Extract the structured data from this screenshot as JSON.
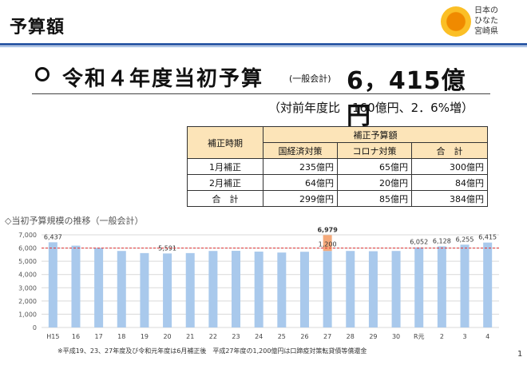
{
  "header": {
    "title": "予算額",
    "logo_lines": [
      "日本の",
      "ひなた",
      "宮崎県"
    ]
  },
  "headline": {
    "label": "令和４年度当初予算",
    "sub": "(一般会計)",
    "amount": "6，415億円",
    "comparison": "（対前年度比　160億円、2．6%増）"
  },
  "table": {
    "head_period": "補正時期",
    "head_group": "補正予算額",
    "head_cols": [
      "国経済対策",
      "コロナ対策",
      "合　計"
    ],
    "rows": [
      {
        "label": "1月補正",
        "cells": [
          "235億円",
          "65億円",
          "300億円"
        ]
      },
      {
        "label": "2月補正",
        "cells": [
          "64億円",
          "20億円",
          "84億円"
        ]
      },
      {
        "label": "合　計",
        "cells": [
          "299億円",
          "85億円",
          "384億円"
        ]
      }
    ]
  },
  "chart_title": "◇当初予算規模の推移（一般会計）",
  "chart_data": {
    "type": "bar",
    "categories": [
      "H15",
      "16",
      "17",
      "18",
      "19",
      "20",
      "21",
      "22",
      "23",
      "24",
      "25",
      "26",
      "27",
      "28",
      "29",
      "30",
      "R元",
      "2",
      "3",
      "4"
    ],
    "values": [
      6437,
      6180,
      6010,
      5780,
      5620,
      5591,
      5620,
      5780,
      5790,
      5730,
      5660,
      5720,
      6979,
      5780,
      5760,
      5780,
      6052,
      6128,
      6255,
      6415
    ],
    "stacked_top": {
      "index": 12,
      "value": 1200
    },
    "data_labels": {
      "0": "6,437",
      "5": "5,591",
      "12": "6,979",
      "16": "6,052",
      "17": "6,128",
      "18": "6,255",
      "19": "6,415"
    },
    "stack_label": "1,200",
    "ylim": [
      0,
      7000
    ],
    "yticks": [
      "0",
      "1,000",
      "2,000",
      "3,000",
      "4,000",
      "5,000",
      "6,000",
      "7,000"
    ],
    "reference_line": 6000,
    "colors": {
      "bar": "#a9c9ec",
      "stack": "#f4a97a",
      "ref": "#e03030",
      "grid": "#d9d9d9"
    }
  },
  "footnote": "※平成19、23、27年度及び令和元年度は6月補正後　平成27年度の1,200億円は口蹄疫対策転貸債等償還金",
  "page_number": "1"
}
